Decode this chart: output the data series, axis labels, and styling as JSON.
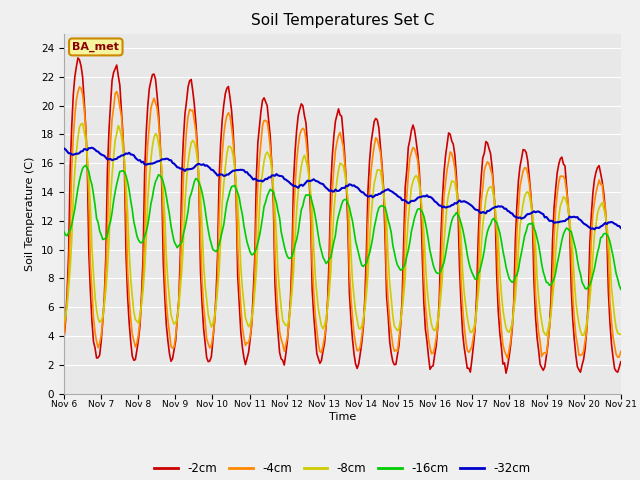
{
  "title": "Soil Temperatures Set C",
  "xlabel": "Time",
  "ylabel": "Soil Temperature (C)",
  "ylim": [
    0,
    25
  ],
  "yticks": [
    0,
    2,
    4,
    6,
    8,
    10,
    12,
    14,
    16,
    18,
    20,
    22,
    24
  ],
  "xtick_labels": [
    "Nov 6",
    "Nov 7",
    "Nov 8",
    "Nov 9",
    "Nov 10",
    "Nov 11",
    "Nov 12",
    "Nov 13",
    "Nov 14",
    "Nov 15",
    "Nov 16",
    "Nov 17",
    "Nov 18",
    "Nov 19",
    "Nov 20",
    "Nov 21"
  ],
  "colors": {
    "-2cm": "#cc0000",
    "-4cm": "#ff8800",
    "-8cm": "#cccc00",
    "-16cm": "#00cc00",
    "-32cm": "#0000cc"
  },
  "legend_labels": [
    "-2cm",
    "-4cm",
    "-8cm",
    "-16cm",
    "-32cm"
  ],
  "annotation_text": "BA_met",
  "annotation_color": "#cc8800",
  "fig_bg_color": "#f0f0f0",
  "plot_bg_color": "#e8e8e8"
}
